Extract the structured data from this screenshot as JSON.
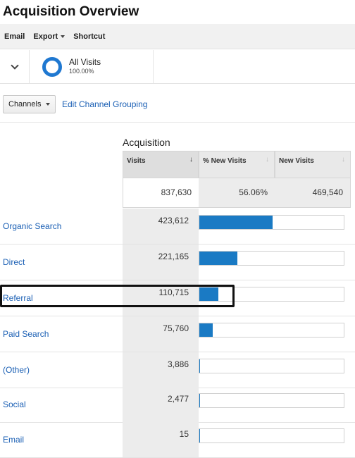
{
  "page": {
    "title": "Acquisition Overview"
  },
  "toolbar": {
    "email": "Email",
    "export": "Export",
    "shortcut": "Shortcut"
  },
  "segment": {
    "name": "All Visits",
    "percent": "100.00%",
    "ring_color": "#1f78d1"
  },
  "controls": {
    "dimension_label": "Channels",
    "edit_link": "Edit Channel Grouping"
  },
  "table": {
    "group_label": "Acquisition",
    "headers": {
      "visits": "Visits",
      "new_visits_pct": "% New Visits",
      "new_visits": "New Visits"
    },
    "totals": {
      "visits": "837,630",
      "new_visits_pct": "56.06%",
      "new_visits": "469,540"
    },
    "bar_color": "#1a7ac4",
    "rows": [
      {
        "channel": "Organic Search",
        "visits": "423,612",
        "share": 0.5057
      },
      {
        "channel": "Direct",
        "visits": "221,165",
        "share": 0.264
      },
      {
        "channel": "Referral",
        "visits": "110,715",
        "share": 0.1322
      },
      {
        "channel": "Paid Search",
        "visits": "75,760",
        "share": 0.0904
      },
      {
        "channel": "(Other)",
        "visits": "3,886",
        "share": 0.0046
      },
      {
        "channel": "Social",
        "visits": "2,477",
        "share": 0.003
      },
      {
        "channel": "Email",
        "visits": "15",
        "share": 2e-05
      }
    ]
  }
}
